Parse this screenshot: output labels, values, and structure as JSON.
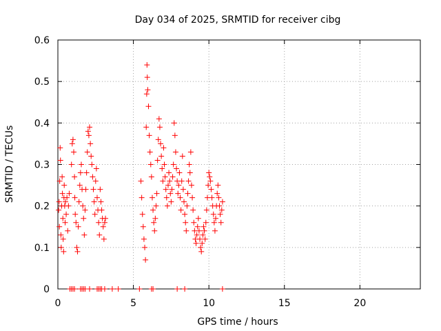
{
  "chart_data": {
    "type": "scatter",
    "title": "Day 034 of 2025, SRMTID for receiver cibg",
    "xlabel": "GPS time / hours",
    "ylabel": "SRMTID / TECUs",
    "xlim": [
      0,
      24
    ],
    "ylim": [
      0,
      0.6
    ],
    "xticks": [
      0,
      5,
      10,
      15,
      20
    ],
    "xtick_labels": [
      "0",
      "5",
      "10",
      "15",
      "20"
    ],
    "yticks": [
      0,
      0.1,
      0.2,
      0.3,
      0.4,
      0.5,
      0.6
    ],
    "ytick_labels": [
      "0",
      "0.1",
      "0.2",
      "0.3",
      "0.4",
      "0.5",
      "0.6"
    ],
    "grid": true,
    "marker": "+",
    "color": "#ff0000",
    "series": [
      {
        "name": "SRMTID",
        "points": [
          [
            0.05,
            0.19
          ],
          [
            0.08,
            0.21
          ],
          [
            0.1,
            0.15
          ],
          [
            0.12,
            0.26
          ],
          [
            0.15,
            0.34
          ],
          [
            0.17,
            0.31
          ],
          [
            0.2,
            0.13
          ],
          [
            0.22,
            0.1
          ],
          [
            0.25,
            0.2
          ],
          [
            0.28,
            0.27
          ],
          [
            0.3,
            0.23
          ],
          [
            0.33,
            0.17
          ],
          [
            0.35,
            0.12
          ],
          [
            0.38,
            0.09
          ],
          [
            0.4,
            0.22
          ],
          [
            0.42,
            0.25
          ],
          [
            0.45,
            0.2
          ],
          [
            0.48,
            0.16
          ],
          [
            0.5,
            0.21
          ],
          [
            0.55,
            0.18
          ],
          [
            0.6,
            0.22
          ],
          [
            0.65,
            0.14
          ],
          [
            0.7,
            0.2
          ],
          [
            0.75,
            0.23
          ],
          [
            0.9,
            0.3
          ],
          [
            0.95,
            0.35
          ],
          [
            1.0,
            0.36
          ],
          [
            1.05,
            0.33
          ],
          [
            1.1,
            0.27
          ],
          [
            1.12,
            0.22
          ],
          [
            1.15,
            0.18
          ],
          [
            1.2,
            0.16
          ],
          [
            1.25,
            0.1
          ],
          [
            1.3,
            0.09
          ],
          [
            1.35,
            0.15
          ],
          [
            1.4,
            0.21
          ],
          [
            1.45,
            0.25
          ],
          [
            1.5,
            0.28
          ],
          [
            1.55,
            0.3
          ],
          [
            1.6,
            0.24
          ],
          [
            1.65,
            0.2
          ],
          [
            1.7,
            0.17
          ],
          [
            1.75,
            0.13
          ],
          [
            1.8,
            0.19
          ],
          [
            1.85,
            0.24
          ],
          [
            1.9,
            0.28
          ],
          [
            1.95,
            0.33
          ],
          [
            2.0,
            0.38
          ],
          [
            2.05,
            0.37
          ],
          [
            2.1,
            0.39
          ],
          [
            2.15,
            0.35
          ],
          [
            2.2,
            0.32
          ],
          [
            2.25,
            0.3
          ],
          [
            2.3,
            0.27
          ],
          [
            2.35,
            0.24
          ],
          [
            2.4,
            0.21
          ],
          [
            2.45,
            0.18
          ],
          [
            2.5,
            0.26
          ],
          [
            2.55,
            0.29
          ],
          [
            2.6,
            0.22
          ],
          [
            2.65,
            0.19
          ],
          [
            2.7,
            0.16
          ],
          [
            2.75,
            0.13
          ],
          [
            2.8,
            0.24
          ],
          [
            2.85,
            0.21
          ],
          [
            2.9,
            0.19
          ],
          [
            2.95,
            0.17
          ],
          [
            3.0,
            0.15
          ],
          [
            3.05,
            0.12
          ],
          [
            3.1,
            0.16
          ],
          [
            3.15,
            0.17
          ],
          [
            5.5,
            0.26
          ],
          [
            5.55,
            0.22
          ],
          [
            5.6,
            0.18
          ],
          [
            5.65,
            0.15
          ],
          [
            5.7,
            0.12
          ],
          [
            5.75,
            0.1
          ],
          [
            5.8,
            0.07
          ],
          [
            5.85,
            0.39
          ],
          [
            5.88,
            0.47
          ],
          [
            5.9,
            0.54
          ],
          [
            5.92,
            0.51
          ],
          [
            5.95,
            0.48
          ],
          [
            6.0,
            0.44
          ],
          [
            6.05,
            0.37
          ],
          [
            6.1,
            0.33
          ],
          [
            6.15,
            0.3
          ],
          [
            6.2,
            0.27
          ],
          [
            6.25,
            0.22
          ],
          [
            6.3,
            0.19
          ],
          [
            6.35,
            0.16
          ],
          [
            6.4,
            0.14
          ],
          [
            6.45,
            0.17
          ],
          [
            6.5,
            0.2
          ],
          [
            6.55,
            0.23
          ],
          [
            6.6,
            0.31
          ],
          [
            6.65,
            0.36
          ],
          [
            6.7,
            0.41
          ],
          [
            6.75,
            0.39
          ],
          [
            6.8,
            0.35
          ],
          [
            6.85,
            0.32
          ],
          [
            6.9,
            0.29
          ],
          [
            6.95,
            0.26
          ],
          [
            7.0,
            0.34
          ],
          [
            7.05,
            0.3
          ],
          [
            7.1,
            0.27
          ],
          [
            7.15,
            0.24
          ],
          [
            7.2,
            0.22
          ],
          [
            7.25,
            0.2
          ],
          [
            7.3,
            0.25
          ],
          [
            7.35,
            0.28
          ],
          [
            7.4,
            0.26
          ],
          [
            7.45,
            0.23
          ],
          [
            7.5,
            0.21
          ],
          [
            7.55,
            0.24
          ],
          [
            7.6,
            0.27
          ],
          [
            7.65,
            0.3
          ],
          [
            7.7,
            0.4
          ],
          [
            7.75,
            0.37
          ],
          [
            7.8,
            0.33
          ],
          [
            7.85,
            0.29
          ],
          [
            7.9,
            0.26
          ],
          [
            7.95,
            0.23
          ],
          [
            8.0,
            0.25
          ],
          [
            8.05,
            0.28
          ],
          [
            8.1,
            0.22
          ],
          [
            8.15,
            0.19
          ],
          [
            8.2,
            0.26
          ],
          [
            8.25,
            0.32
          ],
          [
            8.3,
            0.24
          ],
          [
            8.35,
            0.21
          ],
          [
            8.4,
            0.18
          ],
          [
            8.45,
            0.16
          ],
          [
            8.5,
            0.14
          ],
          [
            8.55,
            0.2
          ],
          [
            8.6,
            0.23
          ],
          [
            8.65,
            0.26
          ],
          [
            8.7,
            0.3
          ],
          [
            8.75,
            0.28
          ],
          [
            8.8,
            0.33
          ],
          [
            8.85,
            0.25
          ],
          [
            8.9,
            0.22
          ],
          [
            8.95,
            0.19
          ],
          [
            9.0,
            0.16
          ],
          [
            9.05,
            0.14
          ],
          [
            9.1,
            0.12
          ],
          [
            9.15,
            0.11
          ],
          [
            9.2,
            0.13
          ],
          [
            9.25,
            0.15
          ],
          [
            9.3,
            0.17
          ],
          [
            9.35,
            0.14
          ],
          [
            9.4,
            0.12
          ],
          [
            9.45,
            0.1
          ],
          [
            9.5,
            0.09
          ],
          [
            9.55,
            0.11
          ],
          [
            9.6,
            0.13
          ],
          [
            9.65,
            0.15
          ],
          [
            9.7,
            0.14
          ],
          [
            9.75,
            0.12
          ],
          [
            9.8,
            0.16
          ],
          [
            9.85,
            0.19
          ],
          [
            9.9,
            0.22
          ],
          [
            9.95,
            0.25
          ],
          [
            10.0,
            0.28
          ],
          [
            10.05,
            0.27
          ],
          [
            10.1,
            0.26
          ],
          [
            10.15,
            0.24
          ],
          [
            10.2,
            0.22
          ],
          [
            10.25,
            0.2
          ],
          [
            10.3,
            0.18
          ],
          [
            10.35,
            0.16
          ],
          [
            10.4,
            0.14
          ],
          [
            10.45,
            0.17
          ],
          [
            10.5,
            0.2
          ],
          [
            10.55,
            0.23
          ],
          [
            10.6,
            0.25
          ],
          [
            10.65,
            0.22
          ],
          [
            10.7,
            0.2
          ],
          [
            10.75,
            0.18
          ],
          [
            10.8,
            0.16
          ],
          [
            10.85,
            0.19
          ],
          [
            10.9,
            0.21
          ]
        ]
      }
    ],
    "zero_points_x": [
      0.8,
      0.9,
      1.0,
      1.1,
      1.5,
      1.6,
      1.7,
      1.8,
      2.1,
      2.6,
      2.7,
      2.8,
      2.9,
      3.1,
      3.6,
      4.0,
      5.4,
      6.2,
      6.3,
      7.9,
      8.4,
      10.9
    ]
  }
}
